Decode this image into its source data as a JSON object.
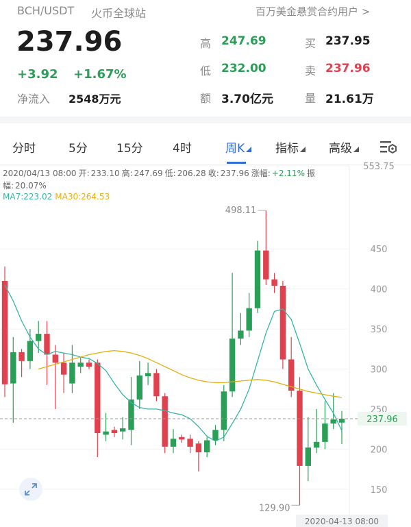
{
  "header": {
    "pair": "BCH/USDT",
    "exchange": "火币全球站",
    "promo": "百万美金悬赏合约用户 >"
  },
  "quote": {
    "price": "237.96",
    "change": "+3.92",
    "change_pct": "+1.67%",
    "net_inflow_label": "净流入",
    "net_inflow": "2548万元",
    "stats": [
      {
        "label": "高",
        "value": "247.69",
        "tone": "green"
      },
      {
        "label": "低",
        "value": "232.00",
        "tone": "green"
      },
      {
        "label": "额",
        "value": "3.70亿元",
        "tone": "black"
      },
      {
        "label": "买",
        "value": "237.95",
        "tone": "black"
      },
      {
        "label": "卖",
        "value": "237.96",
        "tone": "red"
      },
      {
        "label": "量",
        "value": "21.61万",
        "tone": "black"
      }
    ]
  },
  "tabs": [
    {
      "label": "分时",
      "active": false
    },
    {
      "label": "5分",
      "active": false
    },
    {
      "label": "15分",
      "active": false
    },
    {
      "label": "4时",
      "active": false
    },
    {
      "label": "周K",
      "active": true
    },
    {
      "label": "指标",
      "active": false
    },
    {
      "label": "高级",
      "active": false
    }
  ],
  "info": {
    "time": "2020/04/13 08:00",
    "fields": [
      {
        "label": "开:",
        "value": "233.10"
      },
      {
        "label": "高:",
        "value": "247.69"
      },
      {
        "label": "低:",
        "value": "206.28"
      },
      {
        "label": "收:",
        "value": "237.96"
      },
      {
        "label": "涨幅:",
        "value": "+2.11%"
      },
      {
        "label": "振幅:",
        "value": "20.07%"
      }
    ]
  },
  "chart": {
    "type": "candlestick",
    "up_color": "#2b9e57",
    "down_color": "#e0414f",
    "ylim": [
      119,
      553.75
    ],
    "yticks": [
      150,
      200,
      250,
      300,
      350,
      400,
      450,
      553.75
    ],
    "grid": true,
    "high_label": "498.11",
    "low_label": "129.90",
    "last_date": "2020-04-13 08:00",
    "candles": {
      "open": [
        410,
        282,
        321,
        310,
        335,
        344,
        318,
        308,
        282,
        303,
        308,
        308,
        218,
        224,
        222,
        224,
        262,
        291,
        295,
        266,
        203,
        215,
        213,
        207,
        196,
        211,
        224,
        272,
        338,
        348,
        376,
        448,
        412,
        404,
        312,
        273,
        179,
        202,
        209,
        232,
        233.1
      ],
      "high": [
        428,
        340,
        325,
        350,
        360,
        360,
        330,
        320,
        330,
        315,
        312,
        312,
        245,
        228,
        240,
        290,
        310,
        308,
        300,
        270,
        225,
        218,
        218,
        210,
        215,
        230,
        280,
        420,
        370,
        395,
        460,
        498.11,
        420,
        410,
        340,
        290,
        240,
        250,
        260,
        270,
        247.69
      ],
      "low": [
        265,
        233,
        290,
        300,
        320,
        280,
        250,
        270,
        270,
        295,
        300,
        190,
        210,
        215,
        212,
        205,
        250,
        280,
        260,
        195,
        195,
        208,
        195,
        172,
        190,
        205,
        210,
        265,
        330,
        340,
        370,
        405,
        395,
        300,
        265,
        129.9,
        160,
        195,
        200,
        225,
        206.28
      ],
      "close": [
        281,
        321,
        310,
        335,
        344,
        318,
        308,
        293,
        308,
        308,
        303,
        220,
        222,
        220,
        226,
        262,
        292,
        295,
        266,
        203,
        213,
        212,
        203,
        196,
        211,
        224,
        272,
        338,
        348,
        376,
        448,
        412,
        404,
        312,
        273,
        179,
        202,
        209,
        232,
        237,
        237.96
      ]
    },
    "ma": [
      {
        "name": "MA7:",
        "color": "#36b5a5",
        "values": [
          405,
          385,
          360,
          340,
          325,
          318,
          322,
          320,
          318,
          315,
          313,
          307,
          298,
          282,
          268,
          258,
          252,
          250,
          250,
          248,
          245,
          243,
          238,
          228,
          216,
          210,
          215,
          232,
          250,
          275,
          310,
          345,
          372,
          375,
          362,
          332,
          300,
          280,
          262,
          245,
          223.02
        ]
      },
      {
        "name": "MA30:",
        "color": "#e6ae12",
        "values": [
          null,
          null,
          null,
          null,
          300,
          303,
          306,
          309,
          312,
          315,
          318,
          320,
          322,
          323,
          322,
          320,
          317,
          313,
          308,
          303,
          298,
          293,
          289,
          286,
          284,
          283,
          283,
          284,
          285,
          286,
          287,
          286,
          284,
          281,
          278,
          275,
          272,
          270,
          268,
          266,
          264.53
        ]
      }
    ]
  }
}
